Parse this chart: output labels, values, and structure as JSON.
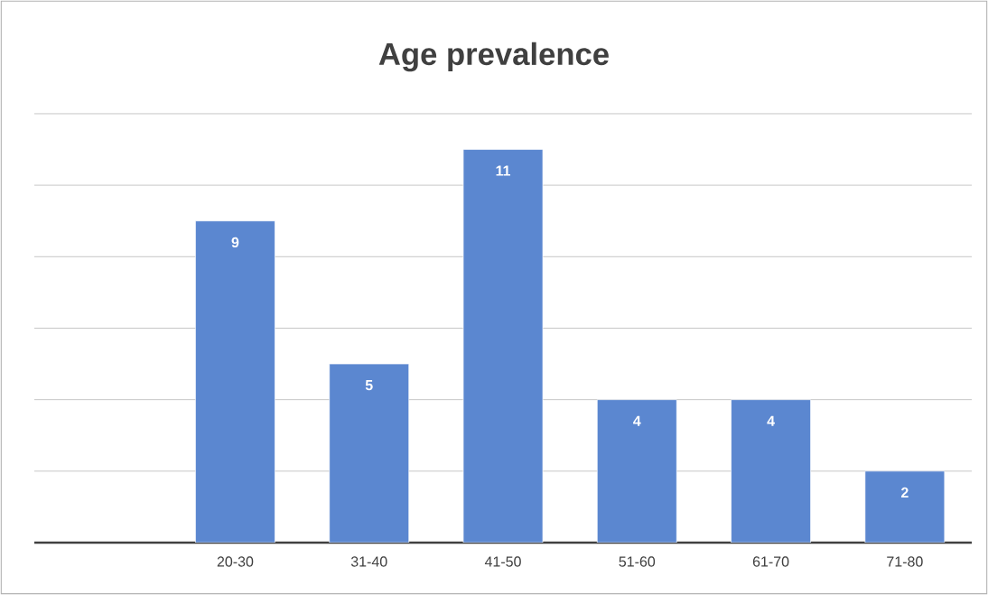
{
  "chart_data": {
    "type": "bar",
    "title": "Age prevalence",
    "categories": [
      null,
      "20-30",
      "31-40",
      "41-50",
      "51-60",
      "61-70",
      "71-80"
    ],
    "values": [
      null,
      9,
      5,
      11,
      4,
      4,
      2
    ],
    "color": "#5b87d0",
    "data_labels": true,
    "tick_labels": "x",
    "grid": "y"
  }
}
